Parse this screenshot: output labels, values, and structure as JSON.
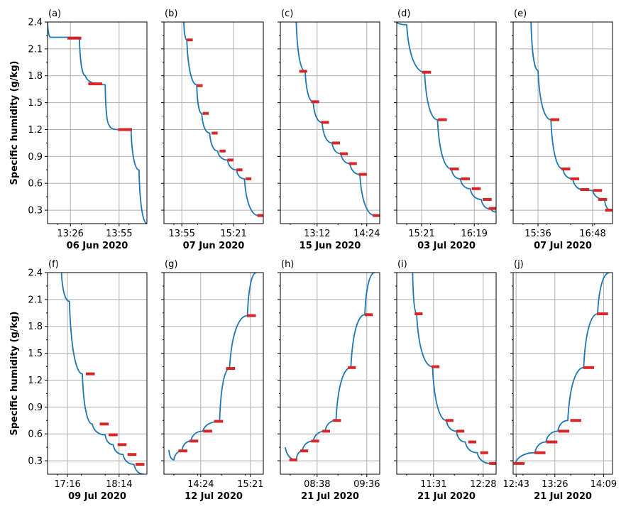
{
  "figure": {
    "ylabel": "Specific humidity (g/kg)",
    "yticks": [
      "0.3",
      "0.6",
      "0.9",
      "1.2",
      "1.5",
      "1.8",
      "2.1",
      "2.4"
    ],
    "colors": {
      "line": "#1f77b4",
      "plateau": "#d62728",
      "grid": "#b0b0b0"
    }
  },
  "chart_data": [
    {
      "type": "line",
      "panel": "(a)",
      "date": "06 Jun 2020",
      "ylim": [
        0.15,
        2.4
      ],
      "xticks": [
        "13:26",
        "13:55"
      ],
      "grid": true,
      "series": [
        {
          "values": [
            2.45,
            2.23,
            2.23,
            1.8,
            1.71,
            1.7,
            1.25,
            1.2,
            1.2,
            0.75,
            0.15
          ]
        }
      ],
      "plateaus": [
        2.22,
        1.71,
        1.2
      ]
    },
    {
      "type": "line",
      "panel": "(b)",
      "date": "07 Jun 2020",
      "ylim": [
        0.15,
        2.4
      ],
      "xticks": [
        "13:55",
        "15:21"
      ],
      "grid": true,
      "series": [
        {
          "values": [
            2.45,
            2.2,
            1.7,
            1.38,
            1.16,
            0.96,
            0.86,
            0.75,
            0.65,
            0.24
          ]
        }
      ],
      "plateaus": [
        2.2,
        1.69,
        1.38,
        1.16,
        0.96,
        0.86,
        0.75,
        0.65,
        0.24
      ]
    },
    {
      "type": "line",
      "panel": "(c)",
      "date": "15 Jun 2020",
      "ylim": [
        0.15,
        2.4
      ],
      "xticks": [
        "13:12",
        "14:24"
      ],
      "grid": true,
      "series": [
        {
          "values": [
            2.45,
            1.85,
            1.51,
            1.28,
            1.05,
            0.93,
            0.82,
            0.7,
            0.24
          ]
        }
      ],
      "plateaus": [
        1.85,
        1.51,
        1.28,
        1.05,
        0.93,
        0.82,
        0.7,
        0.24
      ]
    },
    {
      "type": "line",
      "panel": "(d)",
      "date": "03 Jul 2020",
      "ylim": [
        0.15,
        2.4
      ],
      "xticks": [
        "15:21",
        "16:19"
      ],
      "grid": true,
      "series": [
        {
          "values": [
            2.4,
            2.37,
            1.84,
            1.31,
            0.76,
            0.65,
            0.54,
            0.42,
            0.31,
            0.28
          ]
        }
      ],
      "plateaus": [
        1.84,
        1.31,
        0.76,
        0.65,
        0.54,
        0.42,
        0.32
      ]
    },
    {
      "type": "line",
      "panel": "(e)",
      "date": "07 Jul 2020",
      "ylim": [
        0.15,
        2.4
      ],
      "xticks": [
        "15:36",
        "16:48"
      ],
      "grid": true,
      "series": [
        {
          "values": [
            2.45,
            1.86,
            1.31,
            0.76,
            0.65,
            0.53,
            0.52,
            0.42,
            0.3
          ]
        }
      ],
      "plateaus": [
        1.31,
        0.76,
        0.65,
        0.53,
        0.52,
        0.42,
        0.3
      ]
    },
    {
      "type": "line",
      "panel": "(f)",
      "date": "09 Jul 2020",
      "ylim": [
        0.15,
        2.4
      ],
      "xticks": [
        "17:16",
        "18:14"
      ],
      "grid": true,
      "series": [
        {
          "values": [
            2.45,
            2.08,
            1.27,
            0.71,
            0.59,
            0.48,
            0.37,
            0.26,
            0.15
          ]
        }
      ],
      "plateaus": [
        1.27,
        0.71,
        0.59,
        0.48,
        0.37,
        0.26
      ]
    },
    {
      "type": "line",
      "panel": "(g)",
      "date": "12 Jul 2020",
      "ylim": [
        0.15,
        2.4
      ],
      "xticks": [
        "14:24",
        "15:21"
      ],
      "grid": true,
      "series": [
        {
          "values": [
            0.42,
            0.31,
            0.41,
            0.52,
            0.63,
            0.74,
            1.33,
            1.92,
            2.45
          ]
        }
      ],
      "plateaus": [
        0.41,
        0.52,
        0.63,
        0.74,
        1.33,
        1.92
      ]
    },
    {
      "type": "line",
      "panel": "(h)",
      "date": "21 Jul 2020",
      "ylim": [
        0.15,
        2.4
      ],
      "xticks": [
        "08:38",
        "09:36"
      ],
      "grid": true,
      "series": [
        {
          "values": [
            0.45,
            0.31,
            0.41,
            0.52,
            0.63,
            0.75,
            1.34,
            1.93,
            2.45
          ]
        }
      ],
      "plateaus": [
        0.31,
        0.41,
        0.52,
        0.63,
        0.75,
        1.34,
        1.93
      ]
    },
    {
      "type": "line",
      "panel": "(i)",
      "date": "21 Jul 2020",
      "ylim": [
        0.15,
        2.4
      ],
      "xticks": [
        "11:31",
        "12:28"
      ],
      "grid": true,
      "series": [
        {
          "values": [
            2.45,
            1.94,
            1.35,
            0.75,
            0.63,
            0.51,
            0.39,
            0.27
          ]
        }
      ],
      "plateaus": [
        1.94,
        1.35,
        0.75,
        0.63,
        0.51,
        0.39,
        0.27
      ]
    },
    {
      "type": "line",
      "panel": "(j)",
      "date": "21 Jul 2020",
      "ylim": [
        0.15,
        2.4
      ],
      "xticks": [
        "12:43",
        "13:26",
        "14:09"
      ],
      "grid": true,
      "series": [
        {
          "values": [
            0.27,
            0.39,
            0.51,
            0.63,
            0.75,
            1.34,
            1.94,
            2.45
          ]
        }
      ],
      "plateaus": [
        0.27,
        0.39,
        0.51,
        0.63,
        0.75,
        1.34,
        1.94
      ]
    }
  ]
}
